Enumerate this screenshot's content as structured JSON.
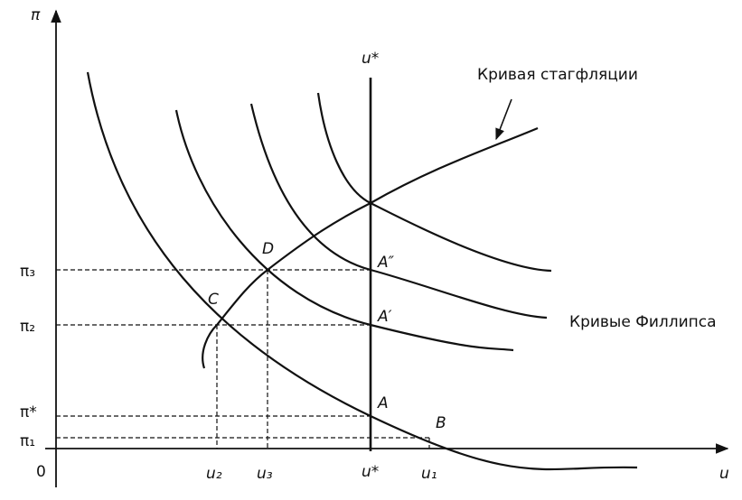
{
  "axes": {
    "y_label": "π",
    "x_label": "u",
    "origin": "0"
  },
  "y_ticks": [
    "π₃",
    "π₂",
    "π*",
    "π₁"
  ],
  "x_ticks": [
    "u₂",
    "u₃",
    "u*",
    "u₁"
  ],
  "natural_rate_label": "u*",
  "points": [
    "A",
    "B",
    "C",
    "D",
    "A′",
    "A″"
  ],
  "curve_labels": {
    "stagflation": "Кривая стагфляции",
    "phillips": "Кривые Филлипса"
  }
}
